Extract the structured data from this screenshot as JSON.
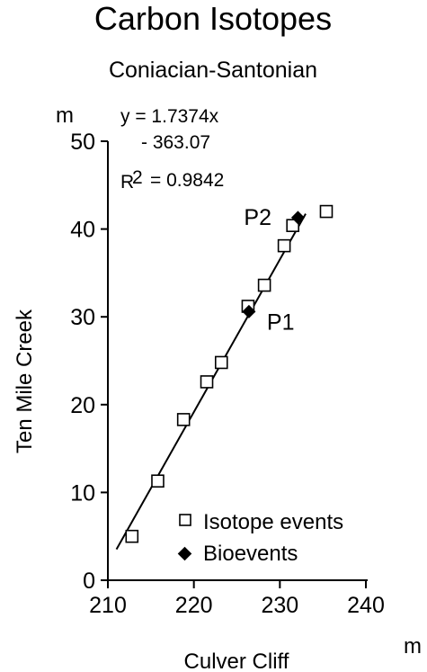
{
  "chart_data": {
    "type": "scatter",
    "title": "Carbon Isotopes",
    "subtitle": "Coniacian-Santonian",
    "xlabel": "Culver Cliff",
    "ylabel": "Ten Mile Creek",
    "x_unit": "m",
    "y_unit": "m",
    "xlim": [
      210,
      240
    ],
    "ylim": [
      0,
      50
    ],
    "x_ticks": [
      210,
      220,
      230,
      240
    ],
    "y_ticks": [
      0,
      10,
      20,
      30,
      40,
      50
    ],
    "grid": false,
    "legend_position": "bottom-right",
    "equation": {
      "line1": "y = 1.7374x",
      "line2": "- 363.07",
      "r2_label": "R",
      "r2_exponent": "2",
      "r2_value": "= 0.9842"
    },
    "regression": {
      "slope": 1.7374,
      "intercept": -363.07,
      "x_range": [
        211,
        233
      ]
    },
    "series": [
      {
        "name": "Isotope events",
        "marker": "open-square",
        "points": [
          {
            "x": 212.8,
            "y": 5.0
          },
          {
            "x": 215.8,
            "y": 11.3
          },
          {
            "x": 218.8,
            "y": 18.3
          },
          {
            "x": 221.5,
            "y": 22.6
          },
          {
            "x": 223.2,
            "y": 24.8
          },
          {
            "x": 226.3,
            "y": 31.2
          },
          {
            "x": 228.2,
            "y": 33.6
          },
          {
            "x": 230.5,
            "y": 38.1
          },
          {
            "x": 231.5,
            "y": 40.4
          },
          {
            "x": 235.4,
            "y": 42.0
          }
        ]
      },
      {
        "name": "Bioevents",
        "marker": "filled-diamond",
        "points": [
          {
            "x": 226.4,
            "y": 30.6,
            "label": "P1"
          },
          {
            "x": 232.1,
            "y": 41.3,
            "label": "P2"
          }
        ]
      }
    ]
  }
}
